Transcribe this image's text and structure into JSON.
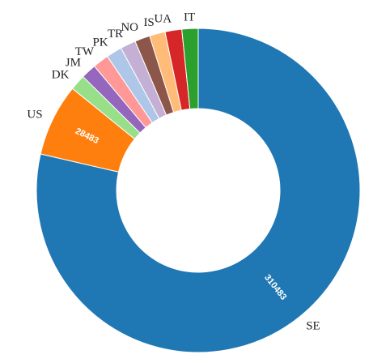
{
  "chart_data": {
    "type": "pie",
    "variant": "donut",
    "categories": [
      "SE",
      "US",
      "DK",
      "JM",
      "TW",
      "PK",
      "TR",
      "NO",
      "IS",
      "UA",
      "IT"
    ],
    "values": [
      310483,
      28483,
      6200,
      6000,
      6300,
      6200,
      6100,
      6000,
      6200,
      6600,
      6400
    ],
    "value_labels_shown": [
      "310483",
      "28483",
      "",
      "",
      "",
      "",
      "",
      "",
      "",
      "",
      ""
    ],
    "colors": [
      "#1f77b4",
      "#ff7f0e",
      "#98df8a",
      "#9467bd",
      "#ff9896",
      "#aec7e8",
      "#c5b0d5",
      "#8c564b",
      "#ffbb78",
      "#d62728",
      "#2ca02c"
    ],
    "title": "",
    "legend": "none"
  }
}
